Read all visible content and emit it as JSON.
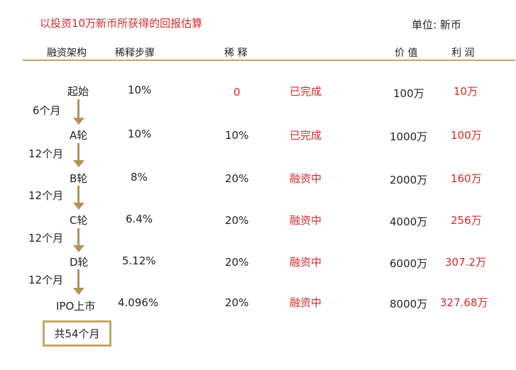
{
  "title": "以投资10万新币所获得的回报估算",
  "unit": "单位: 新币",
  "headers": {
    "structure": "融资架构",
    "dilution_step": "稀释步骤",
    "dilution": "稀 释",
    "value": "价 值",
    "profit": "利 润"
  },
  "rows": [
    {
      "stage": "起始",
      "step": "10%",
      "dilution": "0",
      "status": "已完成",
      "value": "100万",
      "profit": "10万"
    },
    {
      "stage": "A轮",
      "step": "10%",
      "dilution": "10%",
      "status": "已完成",
      "value": "1000万",
      "profit": "100万"
    },
    {
      "stage": "B轮",
      "step": "8%",
      "dilution": "20%",
      "status": "融资中",
      "value": "2000万",
      "profit": "160万"
    },
    {
      "stage": "C轮",
      "step": "6.4%",
      "dilution": "20%",
      "status": "融资中",
      "value": "4000万",
      "profit": "256万"
    },
    {
      "stage": "D轮",
      "step": "5.12%",
      "dilution": "20%",
      "status": "融资中",
      "value": "6000万",
      "profit": "307.2万"
    },
    {
      "stage": "IPO上市",
      "step": "4.096%",
      "dilution": "20%",
      "status": "融资中",
      "value": "8000万",
      "profit": "327.68万"
    }
  ],
  "intervals": [
    "6个月",
    "12个月",
    "12个月",
    "12个月",
    "12个月"
  ],
  "total": "共54个月",
  "colors": {
    "accent": "#c8a46a",
    "arrow": "#b39257",
    "red": "#d42a2a"
  }
}
